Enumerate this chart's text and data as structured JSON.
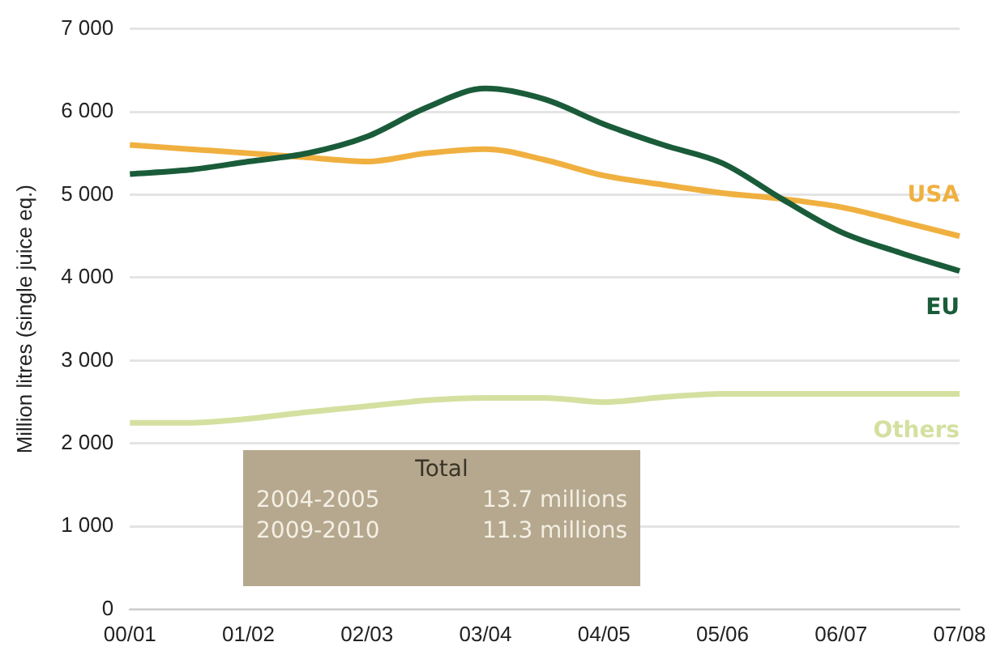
{
  "chart_data": {
    "type": "line",
    "ylabel": "Million litres (single juice eq.)",
    "categories": [
      "00/01",
      null,
      "01/02",
      null,
      "02/03",
      null,
      "03/04",
      null,
      "04/05",
      null,
      "05/06",
      null,
      "06/07",
      null,
      "07/08"
    ],
    "series": [
      {
        "name": "EU",
        "color": "#1a5c3a",
        "values": [
          5250,
          5300,
          5400,
          5500,
          5700,
          6050,
          6280,
          6150,
          5850,
          5600,
          5380,
          4950,
          4550,
          4300,
          4080
        ]
      },
      {
        "name": "USA",
        "color": "#f0b040",
        "values": [
          5600,
          5550,
          5500,
          5450,
          5400,
          5500,
          5550,
          5420,
          5230,
          5120,
          5020,
          4950,
          4850,
          4680,
          4500
        ]
      },
      {
        "name": "Others",
        "color": "#d4e0a0",
        "values": [
          2250,
          2250,
          2300,
          2380,
          2450,
          2520,
          2550,
          2550,
          2500,
          2560,
          2600,
          2600,
          2600,
          2600,
          2600
        ]
      }
    ],
    "ylim": [
      0,
      7000
    ],
    "yticks": [
      {
        "value": 0,
        "label": "0"
      },
      {
        "value": 1000,
        "label": "1 000"
      },
      {
        "value": 2000,
        "label": "2 000"
      },
      {
        "value": 3000,
        "label": "3 000"
      },
      {
        "value": 4000,
        "label": "4 000"
      },
      {
        "value": 5000,
        "label": "5 000"
      },
      {
        "value": 6000,
        "label": "6 000"
      },
      {
        "value": 7000,
        "label": "7 000"
      }
    ],
    "grid": "y",
    "legend": false,
    "marker": "none",
    "line_style": "solid",
    "annotations": [
      "Total",
      "2004-2005",
      "13.7 millions",
      "2009-2010",
      "11.3 millions"
    ]
  }
}
